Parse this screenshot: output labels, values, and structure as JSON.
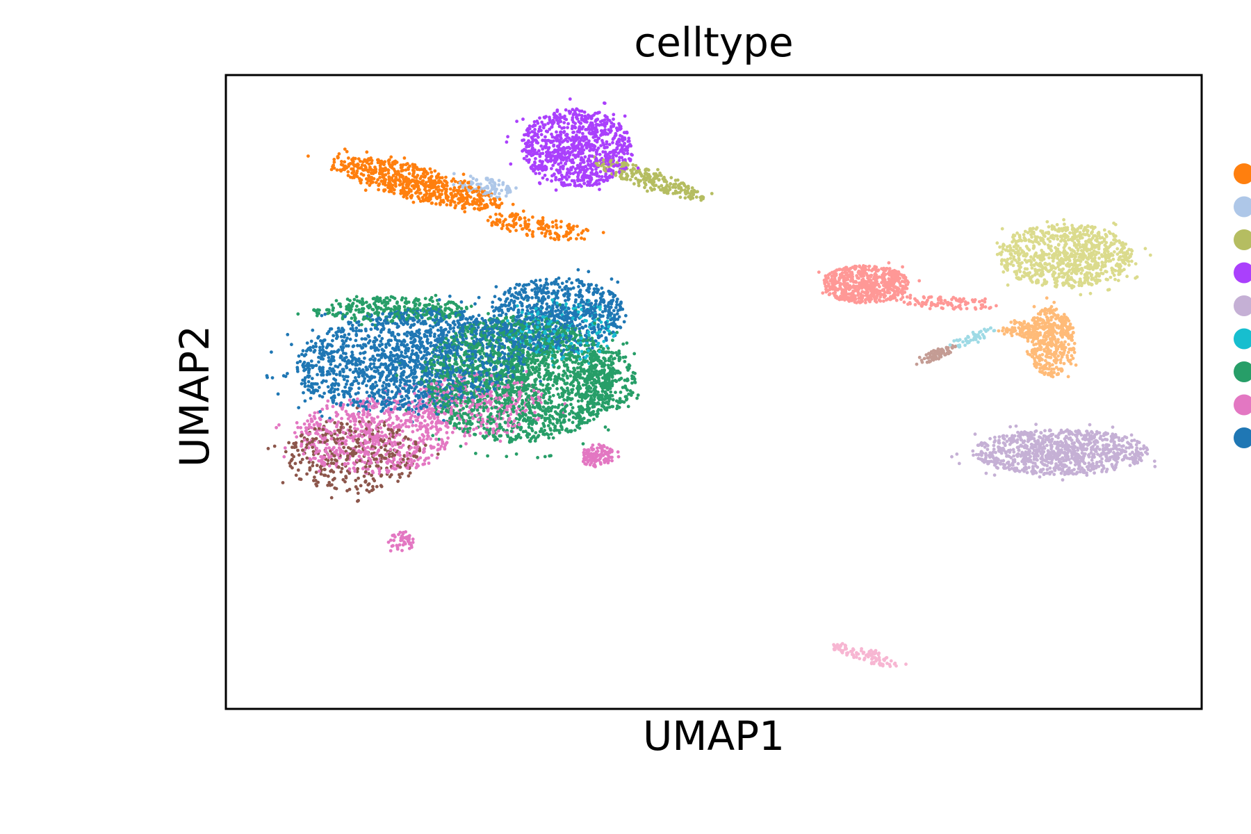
{
  "chart_data": {
    "type": "scatter",
    "title": "celltype",
    "xlabel": "UMAP1",
    "ylabel": "UMAP2",
    "xlim": [
      0,
      100
    ],
    "ylim": [
      0,
      100
    ],
    "grid": false,
    "ticks": false,
    "legend": {
      "placement": "right, outside plot, cropped at image edge",
      "entries": [
        {
          "name": "",
          "color": "#ff7f0e"
        },
        {
          "name": "",
          "color": "#aec7e8"
        },
        {
          "name": "",
          "color": "#b5bd61"
        },
        {
          "name": "",
          "color": "#aa40fc"
        },
        {
          "name": "",
          "color": "#c5b0d5"
        },
        {
          "name": "",
          "color": "#17becf"
        },
        {
          "name": "",
          "color": "#279e68"
        },
        {
          "name": "",
          "color": "#e377c2"
        },
        {
          "name": "",
          "color": "#1f77b4"
        }
      ]
    },
    "extra_colors": {
      "salmon": "#ff9896",
      "light_yellow_green": "#dbdb8d",
      "light_orange": "#ffbb78",
      "brown": "#8c564b",
      "rosy_brown": "#c49c94",
      "light_pink": "#f7b6d2",
      "light_cyan": "#9edae5"
    },
    "clusters": [
      {
        "color": "#ff7f0e",
        "cx": 19.5,
        "cy": 83.0,
        "rx": 9.5,
        "ry": 2.6,
        "rot": -22,
        "n": 650
      },
      {
        "color": "#ff7f0e",
        "cx": 32.0,
        "cy": 76.0,
        "rx": 6.0,
        "ry": 1.6,
        "rot": -15,
        "n": 140
      },
      {
        "color": "#aec7e8",
        "cx": 26.5,
        "cy": 82.5,
        "rx": 3.0,
        "ry": 1.5,
        "rot": -25,
        "n": 90
      },
      {
        "color": "#aa40fc",
        "cx": 36.0,
        "cy": 88.5,
        "rx": 5.8,
        "ry": 6.2,
        "rot": 10,
        "n": 900
      },
      {
        "color": "#b5bd61",
        "cx": 43.5,
        "cy": 83.5,
        "rx": 6.5,
        "ry": 1.4,
        "rot": -28,
        "n": 240
      },
      {
        "color": "#1f77b4",
        "cx": 19.0,
        "cy": 55.0,
        "rx": 12.0,
        "ry": 8.0,
        "rot": 10,
        "n": 1700
      },
      {
        "color": "#1f77b4",
        "cx": 34.0,
        "cy": 62.0,
        "rx": 7.0,
        "ry": 6.0,
        "rot": 0,
        "n": 800
      },
      {
        "color": "#279e68",
        "cx": 30.0,
        "cy": 52.0,
        "rx": 10.0,
        "ry": 10.0,
        "rot": 0,
        "n": 2000
      },
      {
        "color": "#279e68",
        "cx": 17.0,
        "cy": 63.0,
        "rx": 8.0,
        "ry": 2.0,
        "rot": 0,
        "n": 300
      },
      {
        "color": "#279e68",
        "cx": 39.0,
        "cy": 52.0,
        "rx": 3.0,
        "ry": 5.0,
        "rot": 0,
        "n": 250
      },
      {
        "color": "#17becf",
        "cx": 35.0,
        "cy": 60.0,
        "rx": 5.0,
        "ry": 5.0,
        "rot": 0,
        "n": 180
      },
      {
        "color": "#e377c2",
        "cx": 15.0,
        "cy": 43.0,
        "rx": 8.0,
        "ry": 6.0,
        "rot": 0,
        "n": 650
      },
      {
        "color": "#e377c2",
        "cx": 26.0,
        "cy": 48.0,
        "rx": 7.0,
        "ry": 5.0,
        "rot": 0,
        "n": 350
      },
      {
        "color": "#e377c2",
        "cx": 38.0,
        "cy": 40.0,
        "rx": 1.8,
        "ry": 1.8,
        "rot": 0,
        "n": 120
      },
      {
        "color": "#e377c2",
        "cx": 18.0,
        "cy": 26.5,
        "rx": 1.4,
        "ry": 1.6,
        "rot": 0,
        "n": 45
      },
      {
        "color": "#8c564b",
        "cx": 13.0,
        "cy": 40.0,
        "rx": 7.0,
        "ry": 6.0,
        "rot": 0,
        "n": 340
      },
      {
        "color": "#ff9896",
        "cx": 65.5,
        "cy": 67.0,
        "rx": 4.5,
        "ry": 3.0,
        "rot": 0,
        "n": 620
      },
      {
        "color": "#ff9896",
        "cx": 74.0,
        "cy": 64.0,
        "rx": 5.0,
        "ry": 1.0,
        "rot": -5,
        "n": 100
      },
      {
        "color": "#dbdb8d",
        "cx": 86.0,
        "cy": 71.5,
        "rx": 7.0,
        "ry": 5.0,
        "rot": 0,
        "n": 900
      },
      {
        "color": "#ffbb78",
        "cx": 84.5,
        "cy": 58.0,
        "rx": 2.5,
        "ry": 5.5,
        "rot": 0,
        "n": 420
      },
      {
        "color": "#ffbb78",
        "cx": 83.0,
        "cy": 60.0,
        "rx": 4.0,
        "ry": 1.5,
        "rot": 0,
        "n": 120
      },
      {
        "color": "#c5b0d5",
        "cx": 85.5,
        "cy": 40.5,
        "rx": 9.0,
        "ry": 3.6,
        "rot": 0,
        "n": 950
      },
      {
        "color": "#c49c94",
        "cx": 73.0,
        "cy": 56.0,
        "rx": 2.2,
        "ry": 0.7,
        "rot": 35,
        "n": 70
      },
      {
        "color": "#9edae5",
        "cx": 76.5,
        "cy": 58.5,
        "rx": 3.0,
        "ry": 0.8,
        "rot": 30,
        "n": 45
      },
      {
        "color": "#f7b6d2",
        "cx": 65.5,
        "cy": 8.5,
        "rx": 3.8,
        "ry": 1.0,
        "rot": -25,
        "n": 110
      }
    ]
  }
}
